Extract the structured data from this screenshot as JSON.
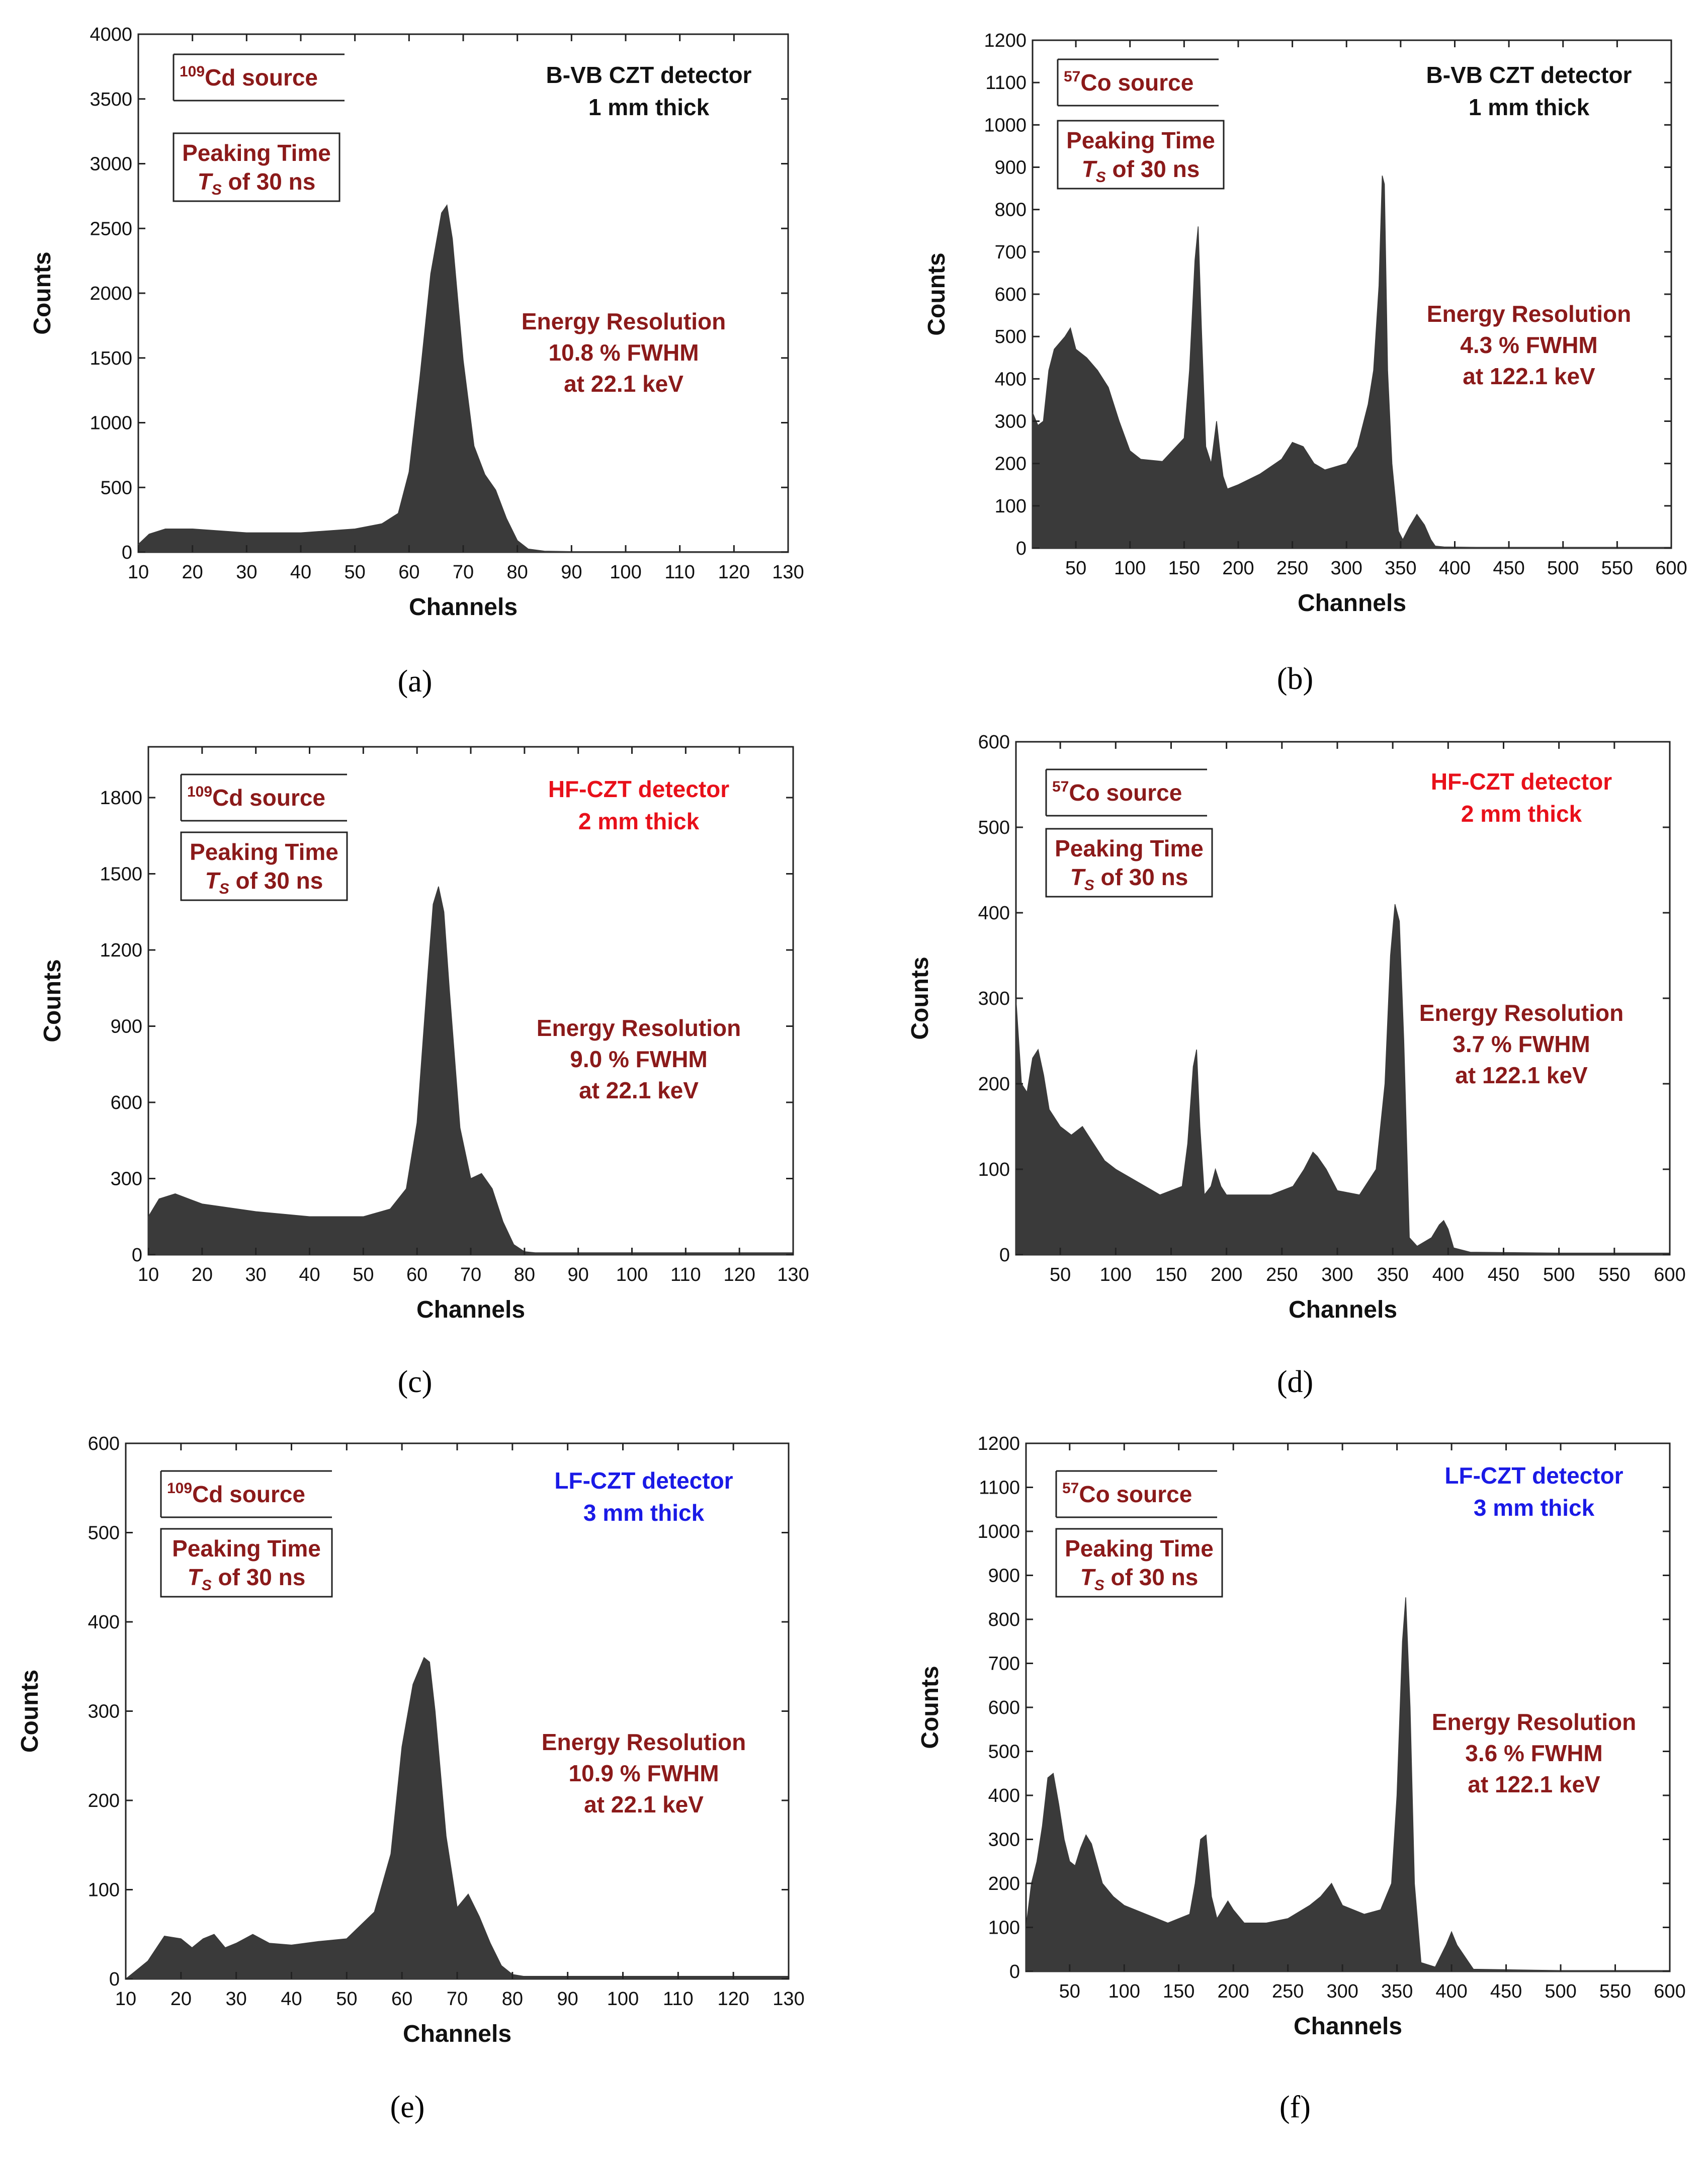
{
  "colors": {
    "fill": "#3a3a3a",
    "frame": "#222222",
    "dark_red": "#8b1a1a",
    "red": "#e8101a",
    "blue": "#1a1ae6",
    "black": "#111111"
  },
  "chart_data": [
    {
      "type": "area",
      "panel": "a",
      "subcaption": "(a)",
      "xlabel": "Channels",
      "ylabel": "Counts",
      "xlim": [
        10,
        130
      ],
      "ylim": [
        0,
        4000
      ],
      "xticks": [
        10,
        20,
        30,
        40,
        50,
        60,
        70,
        80,
        90,
        100,
        110,
        120,
        130
      ],
      "yticks": [
        0,
        500,
        1000,
        1500,
        2000,
        2500,
        3000,
        3500,
        4000
      ],
      "source_sup": "109",
      "source_text": "Cd source",
      "peaking_line1": "Peaking Time",
      "peaking_T": "T",
      "peaking_S": "S",
      "peaking_rest": " of 30 ns",
      "detector_line1": "B-VB CZT detector",
      "detector_line2": "1 mm thick",
      "detector_color": "black",
      "energy_line1": "Energy Resolution",
      "energy_line2": "10.8 % FWHM",
      "energy_line3": "at 22.1 keV",
      "x": [
        10,
        12,
        15,
        20,
        30,
        40,
        50,
        55,
        58,
        60,
        62,
        64,
        66,
        67,
        68,
        70,
        72,
        74,
        76,
        78,
        80,
        82,
        85,
        90,
        100,
        110,
        120,
        130
      ],
      "y": [
        60,
        140,
        180,
        180,
        150,
        150,
        180,
        220,
        300,
        620,
        1350,
        2150,
        2620,
        2680,
        2420,
        1480,
        820,
        600,
        480,
        260,
        90,
        25,
        8,
        5,
        5,
        5,
        5,
        5
      ]
    },
    {
      "type": "area",
      "panel": "b",
      "subcaption": "(b)",
      "xlabel": "Channels",
      "ylabel": "Counts",
      "xlim": [
        10,
        600
      ],
      "ylim": [
        0,
        1200
      ],
      "xticks": [
        50,
        100,
        150,
        200,
        250,
        300,
        350,
        400,
        450,
        500,
        550,
        600
      ],
      "yticks": [
        0,
        100,
        200,
        300,
        400,
        500,
        600,
        700,
        800,
        900,
        1000,
        1100,
        1200
      ],
      "source_sup": "57",
      "source_text": "Co source",
      "peaking_line1": "Peaking Time",
      "peaking_T": "T",
      "peaking_S": "S",
      "peaking_rest": " of 30 ns",
      "detector_line1": "B-VB CZT detector",
      "detector_line2": "1 mm thick",
      "detector_color": "black",
      "energy_line1": "Energy Resolution",
      "energy_line2": "4.3 % FWHM",
      "energy_line3": "at 122.1 keV",
      "x": [
        10,
        15,
        20,
        25,
        30,
        40,
        45,
        50,
        60,
        70,
        80,
        90,
        100,
        110,
        130,
        150,
        155,
        160,
        163,
        166,
        170,
        175,
        180,
        183,
        186,
        190,
        200,
        220,
        240,
        250,
        260,
        270,
        280,
        300,
        310,
        320,
        325,
        330,
        333,
        335,
        338,
        342,
        348,
        352,
        358,
        365,
        372,
        378,
        382,
        390,
        420,
        500,
        600
      ],
      "y": [
        320,
        290,
        300,
        420,
        470,
        500,
        520,
        470,
        450,
        420,
        380,
        300,
        230,
        210,
        205,
        260,
        420,
        680,
        760,
        520,
        240,
        200,
        300,
        230,
        170,
        140,
        150,
        175,
        210,
        250,
        240,
        200,
        185,
        200,
        240,
        340,
        420,
        620,
        880,
        860,
        420,
        200,
        40,
        20,
        50,
        80,
        55,
        20,
        5,
        3,
        2,
        2,
        2
      ]
    },
    {
      "type": "area",
      "panel": "c",
      "subcaption": "(c)",
      "xlabel": "Channels",
      "ylabel": "Counts",
      "xlim": [
        10,
        130
      ],
      "ylim": [
        0,
        2000
      ],
      "xticks": [
        10,
        20,
        30,
        40,
        50,
        60,
        70,
        80,
        90,
        100,
        110,
        120,
        130
      ],
      "yticks": [
        0,
        300,
        600,
        900,
        1200,
        1500,
        1800
      ],
      "source_sup": "109",
      "source_text": "Cd source",
      "peaking_line1": "Peaking Time",
      "peaking_T": "T",
      "peaking_S": "S",
      "peaking_rest": " of 30 ns",
      "detector_line1": "HF-CZT detector",
      "detector_line2": "2 mm thick",
      "detector_color": "red",
      "energy_line1": "Energy Resolution",
      "energy_line2": "9.0 % FWHM",
      "energy_line3": "at 22.1 keV",
      "x": [
        10,
        12,
        15,
        20,
        30,
        40,
        50,
        55,
        58,
        60,
        62,
        63,
        64,
        65,
        66,
        68,
        70,
        72,
        74,
        76,
        78,
        80,
        82,
        90,
        100,
        110,
        120,
        130
      ],
      "y": [
        150,
        220,
        240,
        200,
        170,
        150,
        150,
        180,
        260,
        520,
        1100,
        1380,
        1450,
        1350,
        1050,
        500,
        300,
        320,
        260,
        130,
        40,
        12,
        8,
        8,
        8,
        8,
        8,
        8
      ]
    },
    {
      "type": "area",
      "panel": "d",
      "subcaption": "(d)",
      "xlabel": "Channels",
      "ylabel": "Counts",
      "xlim": [
        10,
        600
      ],
      "ylim": [
        0,
        600
      ],
      "xticks": [
        50,
        100,
        150,
        200,
        250,
        300,
        350,
        400,
        450,
        500,
        550,
        600
      ],
      "yticks": [
        0,
        100,
        200,
        300,
        400,
        500,
        600
      ],
      "source_sup": "57",
      "source_text": "Co source",
      "peaking_line1": "Peaking Time",
      "peaking_T": "T",
      "peaking_S": "S",
      "peaking_rest": " of 30 ns",
      "detector_line1": "HF-CZT detector",
      "detector_line2": "2 mm thick",
      "detector_color": "red",
      "energy_line1": "Energy Resolution",
      "energy_line2": "3.7 % FWHM",
      "energy_line3": "at 122.1 keV",
      "x": [
        10,
        15,
        20,
        25,
        30,
        35,
        40,
        50,
        60,
        70,
        80,
        90,
        100,
        120,
        140,
        160,
        165,
        170,
        173,
        176,
        180,
        186,
        190,
        195,
        200,
        220,
        240,
        260,
        270,
        278,
        282,
        290,
        300,
        320,
        335,
        343,
        348,
        352,
        356,
        360,
        365,
        372,
        385,
        392,
        396,
        400,
        405,
        420,
        500,
        600
      ],
      "y": [
        300,
        200,
        190,
        230,
        240,
        210,
        170,
        150,
        140,
        150,
        130,
        110,
        100,
        85,
        70,
        80,
        130,
        220,
        240,
        150,
        70,
        80,
        100,
        80,
        70,
        70,
        70,
        80,
        100,
        120,
        115,
        100,
        75,
        70,
        100,
        200,
        350,
        410,
        390,
        250,
        20,
        10,
        20,
        35,
        40,
        30,
        8,
        3,
        2,
        2
      ]
    },
    {
      "type": "area",
      "panel": "e",
      "subcaption": "(e)",
      "xlabel": "Channels",
      "ylabel": "Counts",
      "xlim": [
        10,
        130
      ],
      "ylim": [
        0,
        600
      ],
      "xticks": [
        10,
        20,
        30,
        40,
        50,
        60,
        70,
        80,
        90,
        100,
        110,
        120,
        130
      ],
      "yticks": [
        0,
        100,
        200,
        300,
        400,
        500,
        600
      ],
      "source_sup": "109",
      "source_text": "Cd source",
      "peaking_line1": "Peaking Time",
      "peaking_T": "T",
      "peaking_S": "S",
      "peaking_rest": " of 30 ns",
      "detector_line1": "LF-CZT detector",
      "detector_line2": "3 mm thick",
      "detector_color": "blue",
      "energy_line1": "Energy Resolution",
      "energy_line2": "10.9 % FWHM",
      "energy_line3": "at 22.1 keV",
      "x": [
        10,
        12,
        14,
        17,
        20,
        22,
        24,
        26,
        28,
        30,
        33,
        36,
        40,
        45,
        50,
        55,
        58,
        60,
        62,
        64,
        65,
        66,
        68,
        70,
        72,
        74,
        76,
        78,
        80,
        82,
        90,
        100,
        110,
        120,
        130
      ],
      "y": [
        0,
        10,
        20,
        48,
        45,
        35,
        45,
        50,
        35,
        40,
        50,
        40,
        38,
        42,
        45,
        75,
        140,
        260,
        330,
        360,
        355,
        300,
        160,
        80,
        95,
        70,
        40,
        15,
        5,
        3,
        3,
        3,
        3,
        3,
        3
      ]
    },
    {
      "type": "area",
      "panel": "f",
      "subcaption": "(f)",
      "xlabel": "Channels",
      "ylabel": "Counts",
      "xlim": [
        10,
        600
      ],
      "ylim": [
        0,
        1200
      ],
      "xticks": [
        50,
        100,
        150,
        200,
        250,
        300,
        350,
        400,
        450,
        500,
        550,
        600
      ],
      "yticks": [
        0,
        100,
        200,
        300,
        400,
        500,
        600,
        700,
        800,
        900,
        1000,
        1100,
        1200
      ],
      "source_sup": "57",
      "source_text": "Co source",
      "peaking_line1": "Peaking Time",
      "peaking_T": "T",
      "peaking_S": "S",
      "peaking_rest": " of 30 ns",
      "detector_line1": "LF-CZT detector",
      "detector_line2": "3 mm thick",
      "detector_color": "blue",
      "energy_line1": "Energy Resolution",
      "energy_line2": "3.6 % FWHM",
      "energy_line3": "at 122.1 keV",
      "x": [
        10,
        15,
        20,
        25,
        30,
        35,
        40,
        45,
        50,
        55,
        60,
        65,
        70,
        80,
        90,
        100,
        120,
        140,
        160,
        165,
        170,
        175,
        180,
        185,
        190,
        195,
        200,
        210,
        230,
        250,
        270,
        280,
        290,
        300,
        320,
        335,
        345,
        350,
        355,
        358,
        362,
        366,
        372,
        385,
        395,
        400,
        405,
        420,
        500,
        600
      ],
      "y": [
        100,
        200,
        250,
        330,
        440,
        450,
        380,
        300,
        250,
        240,
        280,
        310,
        290,
        200,
        170,
        150,
        130,
        110,
        130,
        200,
        300,
        310,
        170,
        120,
        140,
        160,
        140,
        110,
        110,
        120,
        150,
        170,
        200,
        150,
        130,
        140,
        200,
        400,
        750,
        850,
        600,
        200,
        20,
        10,
        60,
        90,
        60,
        5,
        2,
        2
      ]
    }
  ]
}
